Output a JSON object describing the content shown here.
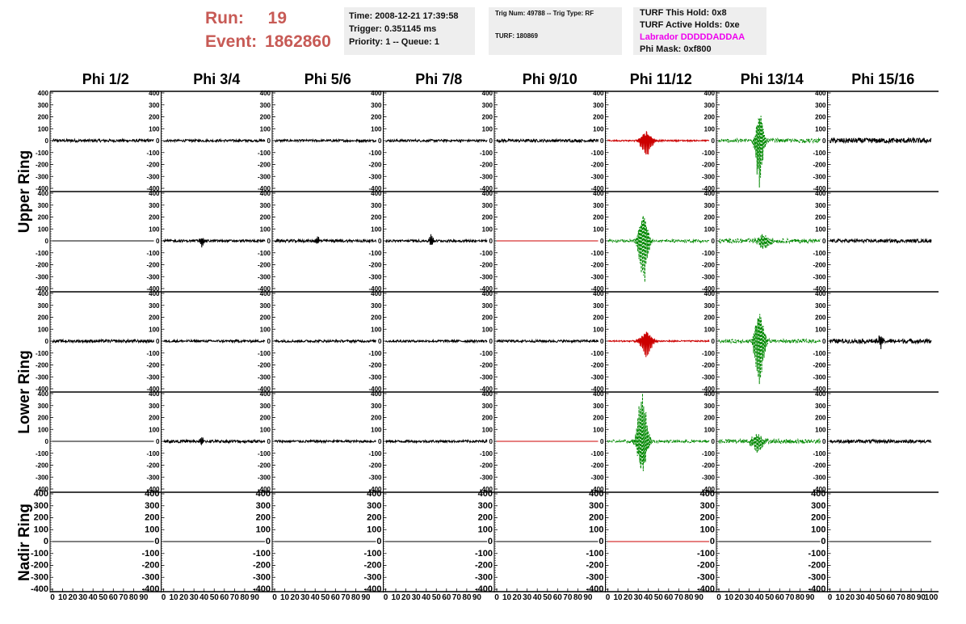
{
  "header": {
    "run_label": "Run:",
    "run_value": "19",
    "event_label": "Event:",
    "event_value": "1862860"
  },
  "time_box": {
    "time": "Time: 2008-12-21 17:39:58",
    "trigger": "Trigger: 0.351145 ms",
    "priority": "Priority: 1 -- Queue: 1"
  },
  "trig_box": {
    "trig": "Trig Num: 49788 -- Trig Type: RF",
    "turf": "TURF: 180869"
  },
  "turf_box": {
    "hold": "TURF This Hold: 0x8",
    "active": "TURF Active Holds: 0xe",
    "labrador": "Labrador DDDDDADDAA",
    "phi_mask": "Phi Mask: 0xf800"
  },
  "colors": {
    "header_red": "#c75a55",
    "labrador_magenta": "#ee00ee",
    "trace_black": "#000000",
    "trace_red": "#cc0000",
    "trace_green": "#008800"
  },
  "chart_data": {
    "type": "line",
    "columns": [
      "Phi 1/2",
      "Phi 3/4",
      "Phi 5/6",
      "Phi 7/8",
      "Phi 9/10",
      "Phi 11/12",
      "Phi 13/14",
      "Phi 15/16"
    ],
    "rings": [
      "Upper Ring",
      "Lower Ring",
      "Nadir Ring"
    ],
    "ylim": [
      -400,
      400
    ],
    "y_ticks": [
      400,
      300,
      200,
      100,
      0,
      -100,
      -200,
      -300,
      -400
    ],
    "xlim": [
      0,
      100
    ],
    "x_tick_labels": [
      "0",
      "10",
      "20",
      "30",
      "40",
      "50",
      "60",
      "70",
      "80",
      "90",
      "100"
    ],
    "panels": [
      [
        {
          "style": "black",
          "amp": 12,
          "burst": null
        },
        {
          "style": "black",
          "amp": 10,
          "burst": null
        },
        {
          "style": "black",
          "amp": 10,
          "burst": null
        },
        {
          "style": "black",
          "amp": 10,
          "burst": null
        },
        {
          "style": "black",
          "amp": 12,
          "burst": null
        },
        {
          "style": "red",
          "amp": 6,
          "burst": {
            "center": 38,
            "width": 6,
            "peak": 110,
            "sign": 1
          }
        },
        {
          "style": "green",
          "amp": 16,
          "burst": {
            "center": 40,
            "width": 4,
            "peak": 330,
            "sign": 1
          }
        },
        {
          "style": "black",
          "amp": 22,
          "burst": null
        }
      ],
      [
        {
          "style": "black",
          "amp": 0,
          "burst": null
        },
        {
          "style": "black",
          "amp": 10,
          "burst": {
            "center": 38,
            "width": 2,
            "peak": 45,
            "sign": 1
          }
        },
        {
          "style": "black",
          "amp": 12,
          "burst": {
            "center": 42,
            "width": 2,
            "peak": 40,
            "sign": -1
          }
        },
        {
          "style": "black",
          "amp": 10,
          "burst": {
            "center": 45,
            "width": 2,
            "peak": 60,
            "sign": -1
          }
        },
        {
          "style": "red",
          "amp": 0,
          "burst": null
        },
        {
          "style": "green",
          "amp": 12,
          "burst": {
            "center": 35,
            "width": 5,
            "peak": 310,
            "sign": 1
          }
        },
        {
          "style": "green",
          "amp": 18,
          "burst": {
            "center": 45,
            "width": 6,
            "peak": 70,
            "sign": 1
          }
        },
        {
          "style": "black",
          "amp": 14,
          "burst": null
        }
      ],
      [
        {
          "style": "black",
          "amp": 12,
          "burst": null
        },
        {
          "style": "black",
          "amp": 10,
          "burst": null
        },
        {
          "style": "black",
          "amp": 10,
          "burst": null
        },
        {
          "style": "black",
          "amp": 10,
          "burst": null
        },
        {
          "style": "black",
          "amp": 10,
          "burst": null
        },
        {
          "style": "red",
          "amp": 6,
          "burst": {
            "center": 38,
            "width": 6,
            "peak": 115,
            "sign": 1
          }
        },
        {
          "style": "green",
          "amp": 14,
          "burst": {
            "center": 40,
            "width": 5,
            "peak": 320,
            "sign": 1
          }
        },
        {
          "style": "black",
          "amp": 18,
          "burst": {
            "center": 50,
            "width": 3,
            "peak": 50,
            "sign": 1
          }
        }
      ],
      [
        {
          "style": "black",
          "amp": 0,
          "burst": null
        },
        {
          "style": "black",
          "amp": 12,
          "burst": {
            "center": 38,
            "width": 2,
            "peak": 30,
            "sign": -1
          }
        },
        {
          "style": "black",
          "amp": 10,
          "burst": null
        },
        {
          "style": "black",
          "amp": 10,
          "burst": null
        },
        {
          "style": "red",
          "amp": 0,
          "burst": null
        },
        {
          "style": "green",
          "amp": 12,
          "burst": {
            "center": 34,
            "width": 5,
            "peak": 380,
            "sign": -1
          }
        },
        {
          "style": "green",
          "amp": 18,
          "burst": {
            "center": 38,
            "width": 6,
            "peak": 80,
            "sign": 1
          }
        },
        {
          "style": "black",
          "amp": 14,
          "burst": null
        }
      ],
      [
        {
          "style": "black",
          "amp": 0,
          "burst": null
        },
        {
          "style": "black",
          "amp": 0,
          "burst": null
        },
        {
          "style": "black",
          "amp": 0,
          "burst": null
        },
        {
          "style": "black",
          "amp": 0,
          "burst": null
        },
        {
          "style": "black",
          "amp": 0,
          "burst": null
        },
        {
          "style": "red",
          "amp": 0,
          "burst": null
        },
        {
          "style": "black",
          "amp": 0,
          "burst": null
        },
        {
          "style": "black",
          "amp": 0,
          "burst": null
        }
      ]
    ]
  }
}
